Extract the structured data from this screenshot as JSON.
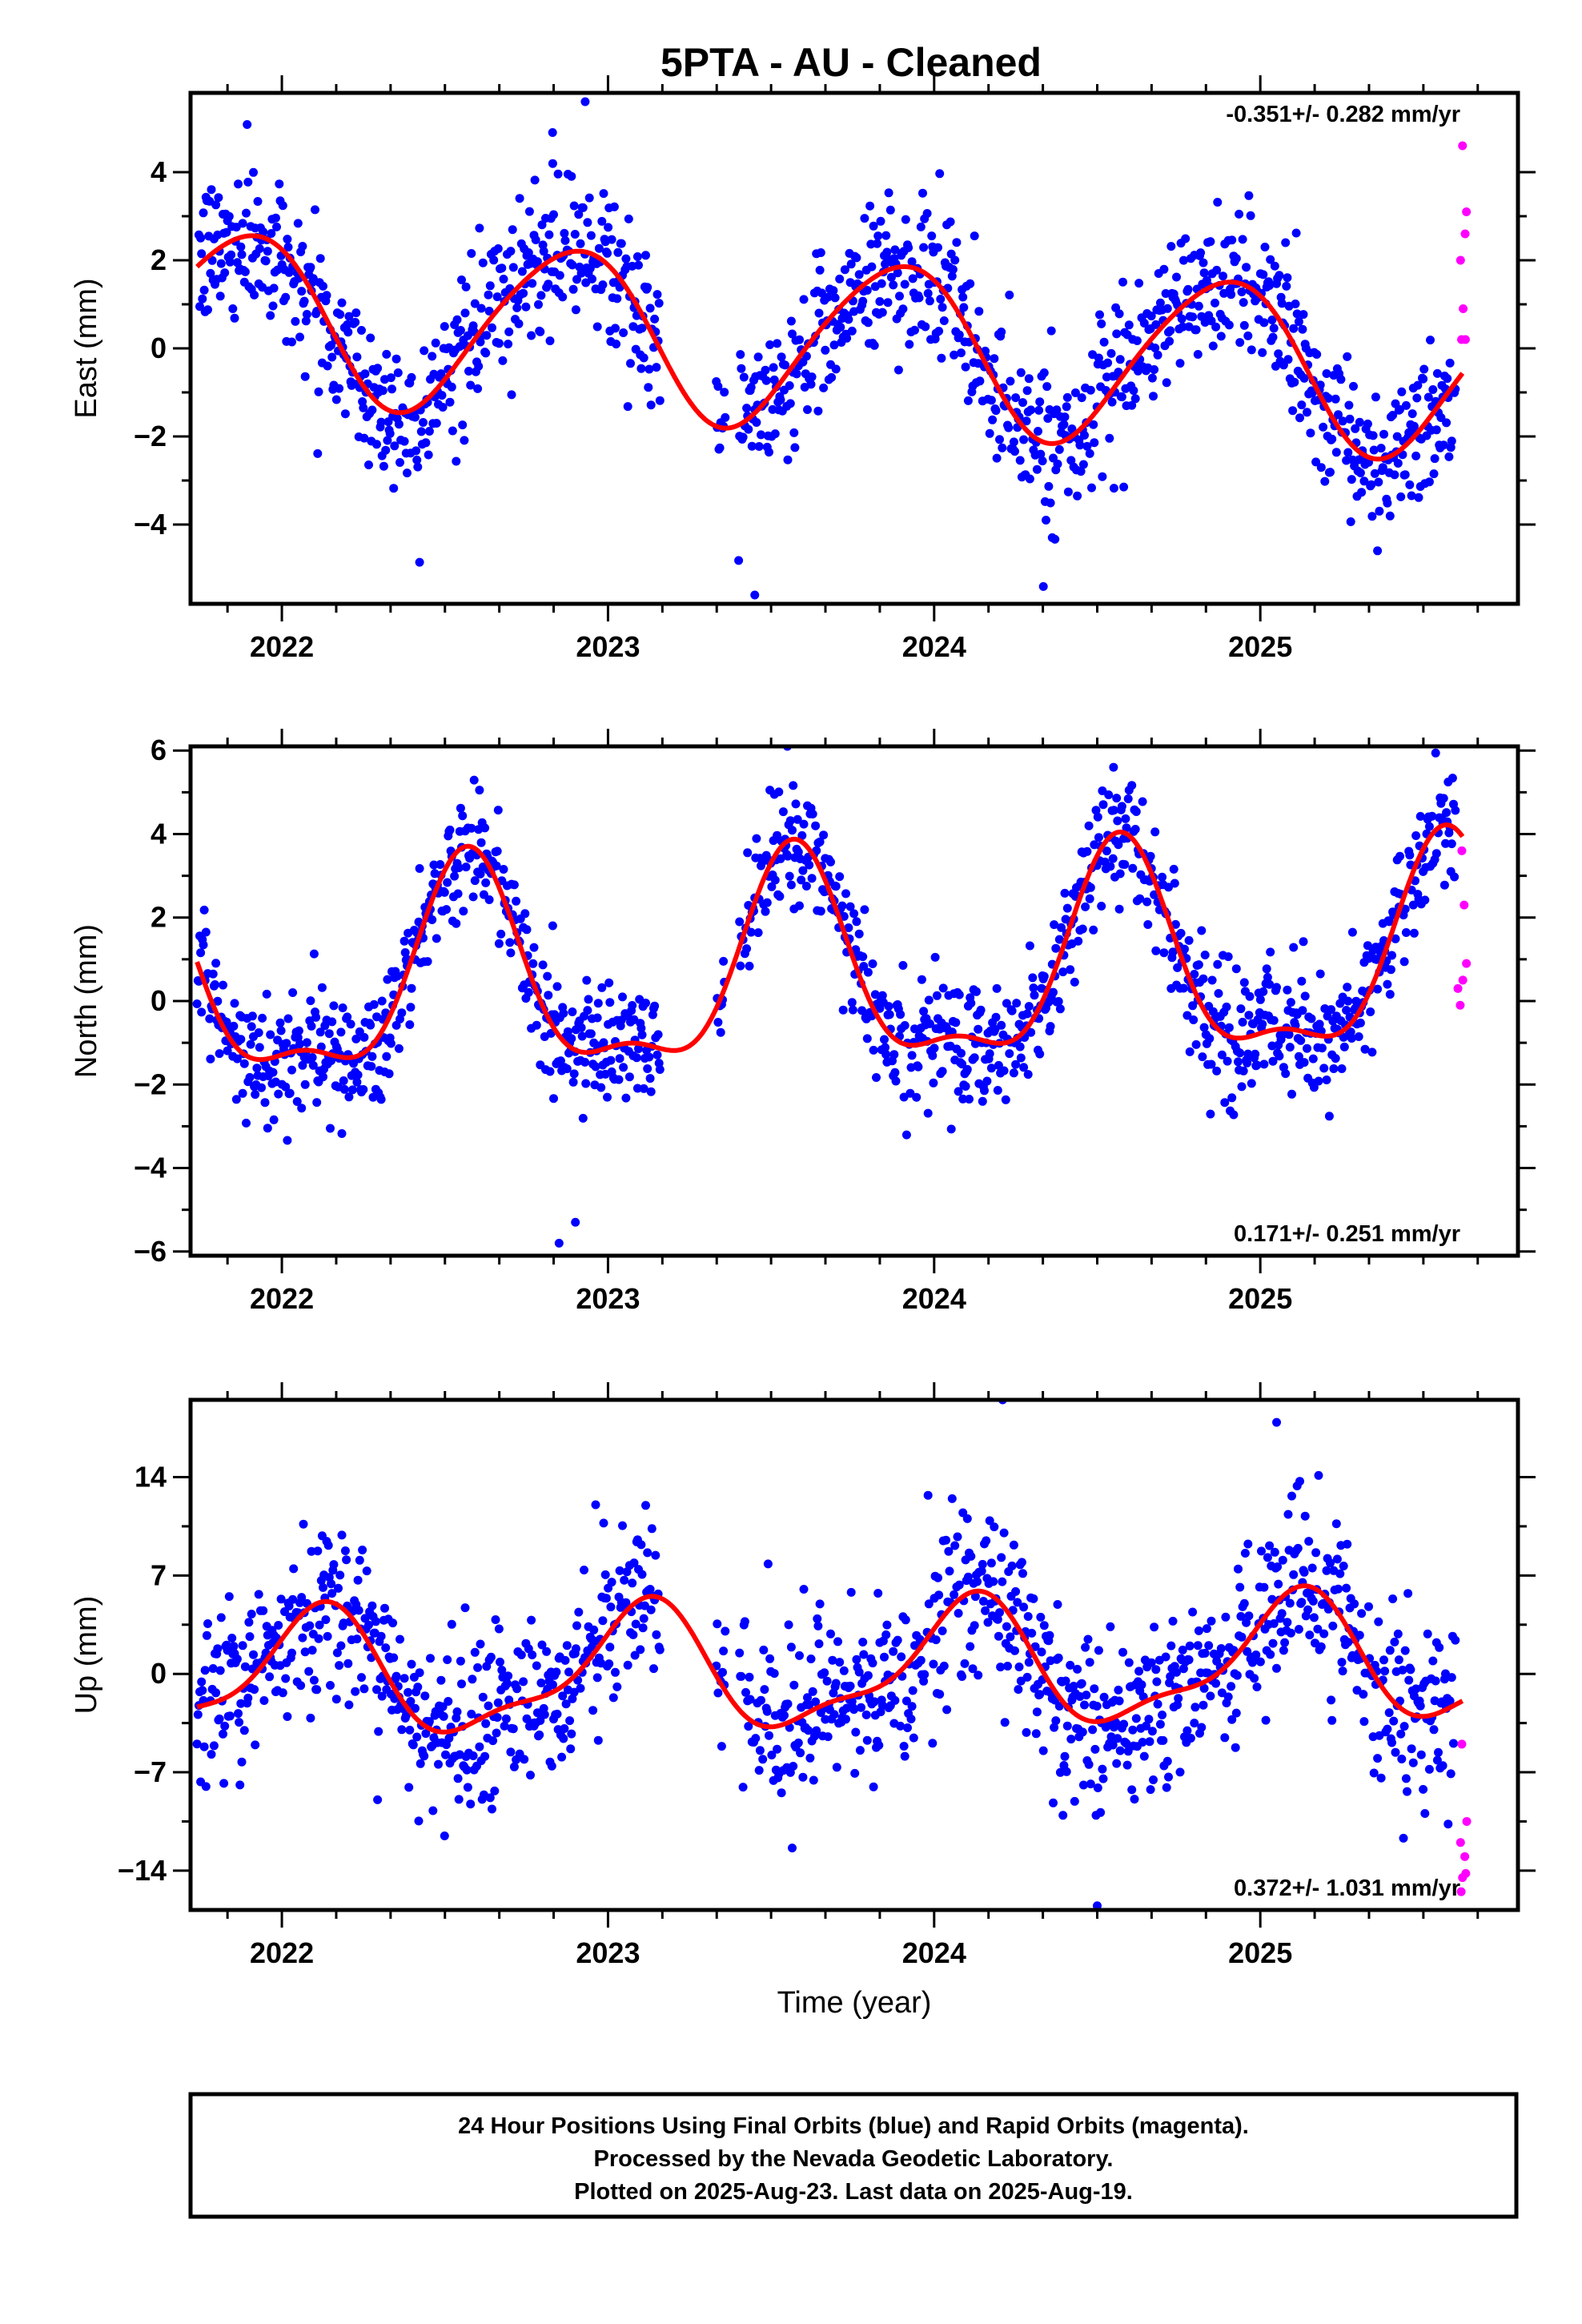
{
  "title": "5PTA  - AU - Cleaned",
  "caption_lines": [
    "24 Hour Positions Using Final Orbits (blue) and Rapid Orbits (magenta).",
    "Processed by the Nevada Geodetic Laboratory.",
    "Plotted on 2025-Aug-23. Last data on 2025-Aug-19."
  ],
  "colors": {
    "final": "#0000ff",
    "rapid": "#ff00ff",
    "model": "#ff0000",
    "frame": "#000000"
  },
  "chart_data": [
    {
      "type": "scatter",
      "component": "east",
      "ylabel": "East (mm)",
      "xlabel": "",
      "xlim": [
        2021.72,
        2025.79
      ],
      "ylim": [
        -5.8,
        5.8
      ],
      "xticks": [
        2022,
        2023,
        2024,
        2025
      ],
      "yticks": [
        -4,
        -2,
        0,
        2,
        4
      ],
      "rate_label": "-0.351+/- 0.282 mm/yr",
      "rate_position": "top-right",
      "model": {
        "offset": 0.1,
        "rate": -0.351,
        "annual_amp": 1.9,
        "annual_peak": 2021.88,
        "semi_amp": 0.2,
        "semi_peak": 2022.05
      },
      "extremes": [
        {
          "x": 2022.93,
          "y": 5.6
        },
        {
          "x": 2023.45,
          "y": -5.6
        },
        {
          "x": 2022.83,
          "y": 4.9
        }
      ],
      "rapid_points": [
        [
          2025.62,
          4.6
        ],
        [
          2025.632,
          3.1
        ],
        [
          2025.628,
          2.6
        ],
        [
          2025.614,
          2.0
        ],
        [
          2025.622,
          0.9
        ],
        [
          2025.617,
          0.2
        ],
        [
          2025.629,
          0.2
        ]
      ]
    },
    {
      "type": "scatter",
      "component": "north",
      "ylabel": "North (mm)",
      "xlabel": "",
      "xlim": [
        2021.72,
        2025.79
      ],
      "ylim": [
        -6.1,
        6.1
      ],
      "xticks": [
        2022,
        2023,
        2024,
        2025
      ],
      "yticks": [
        -6,
        -4,
        -2,
        0,
        2,
        4,
        6
      ],
      "rate_label": "0.171+/- 0.251 mm/yr",
      "rate_position": "bottom-right",
      "model": {
        "offset": 0.6,
        "rate": 0.171,
        "annual_amp": 2.4,
        "annual_peak": 2022.57,
        "semi_amp": 0.9,
        "semi_peak": 2022.07
      },
      "extremes": [
        {
          "x": 2022.85,
          "y": -5.8
        },
        {
          "x": 2023.55,
          "y": 6.1
        },
        {
          "x": 2024.55,
          "y": 5.6
        },
        {
          "x": 2022.9,
          "y": -5.3
        }
      ],
      "rapid_points": [
        [
          2025.618,
          3.6
        ],
        [
          2025.625,
          2.3
        ],
        [
          2025.632,
          0.9
        ],
        [
          2025.621,
          0.5
        ],
        [
          2025.606,
          0.3
        ],
        [
          2025.613,
          -0.1
        ]
      ]
    },
    {
      "type": "scatter",
      "component": "up",
      "ylabel": "Up (mm)",
      "xlabel": "Time (year)",
      "xlim": [
        2021.72,
        2025.79
      ],
      "ylim": [
        -16.8,
        19.5
      ],
      "xticks": [
        2022,
        2023,
        2024,
        2025
      ],
      "yticks": [
        -14,
        -7,
        0,
        7,
        14
      ],
      "rate_label": "0.372+/- 1.031 mm/yr",
      "rate_position": "bottom-right",
      "model": {
        "offset": 0.3,
        "rate": 0.372,
        "annual_amp": 4.2,
        "annual_peak": 2022.1,
        "semi_amp": 1.4,
        "semi_peak": 2022.16
      },
      "extremes": [
        {
          "x": 2024.21,
          "y": 19.5
        },
        {
          "x": 2024.5,
          "y": -16.5
        },
        {
          "x": 2025.05,
          "y": 17.9
        }
      ],
      "rapid_points": [
        [
          2025.618,
          -5.0
        ],
        [
          2025.633,
          -10.5
        ],
        [
          2025.614,
          -12.0
        ],
        [
          2025.627,
          -13.0
        ],
        [
          2025.62,
          -14.5
        ],
        [
          2025.63,
          -14.2
        ],
        [
          2025.616,
          -15.5
        ]
      ]
    }
  ]
}
